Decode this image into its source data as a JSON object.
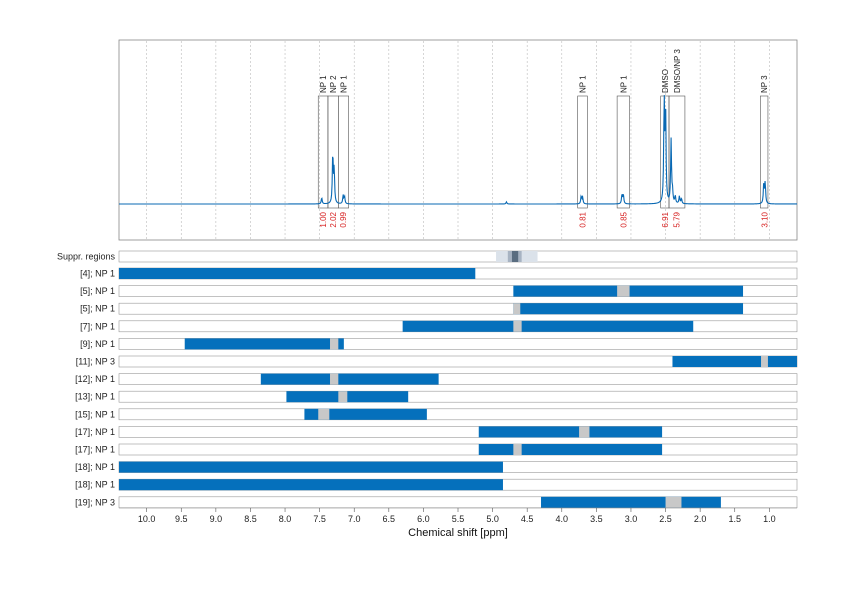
{
  "chart_data": {
    "type": "line",
    "xlabel": "Chemical shift [ppm]",
    "xlim": [
      10.4,
      0.6
    ],
    "x_ticks": [
      "10.0",
      "9.5",
      "9.0",
      "8.5",
      "8.0",
      "7.5",
      "7.0",
      "6.5",
      "6.0",
      "5.5",
      "5.0",
      "4.5",
      "4.0",
      "3.5",
      "3.0",
      "2.5",
      "2.0",
      "1.5",
      "1.0"
    ],
    "x_tick_values": [
      10.0,
      9.5,
      9.0,
      8.5,
      8.0,
      7.5,
      7.0,
      6.5,
      6.0,
      5.5,
      5.0,
      4.5,
      4.0,
      3.5,
      3.0,
      2.5,
      2.0,
      1.5,
      1.0
    ],
    "grid": true,
    "colors": {
      "spectrum": "#0868b3",
      "bar": "#0570bc",
      "gap": "#c8c8c8",
      "integral": "#d61f1f",
      "suppr": "#dbe2ea",
      "suppr_dark": "#a7b3c2",
      "suppr_core": "#5a6d80"
    },
    "spectrum": {
      "peaks": [
        {
          "x": 7.47,
          "h": 0.06
        },
        {
          "x": 7.31,
          "h": 0.48
        },
        {
          "x": 7.29,
          "h": 0.32
        },
        {
          "x": 7.16,
          "h": 0.08
        },
        {
          "x": 7.14,
          "h": 0.07
        },
        {
          "x": 3.72,
          "h": 0.07
        },
        {
          "x": 3.7,
          "h": 0.07
        },
        {
          "x": 3.13,
          "h": 0.09
        },
        {
          "x": 3.11,
          "h": 0.09
        },
        {
          "x": 2.52,
          "h": 0.95
        },
        {
          "x": 2.5,
          "h": 0.92
        },
        {
          "x": 2.42,
          "h": 0.6
        },
        {
          "x": 2.4,
          "h": 0.1
        },
        {
          "x": 2.36,
          "h": 0.07
        },
        {
          "x": 2.3,
          "h": 0.07
        },
        {
          "x": 2.27,
          "h": 0.05
        },
        {
          "x": 1.08,
          "h": 0.2
        },
        {
          "x": 1.06,
          "h": 0.2
        },
        {
          "x": 4.8,
          "h": 0.02
        }
      ]
    },
    "peak_boxes": [
      {
        "label": "NP 1",
        "x1": 7.52,
        "x2": 7.38
      },
      {
        "label": "NP 2",
        "x1": 7.38,
        "x2": 7.23
      },
      {
        "label": "NP 1",
        "x1": 7.23,
        "x2": 7.08
      },
      {
        "label": "NP 1",
        "x1": 3.77,
        "x2": 3.63
      },
      {
        "label": "NP 1",
        "x1": 3.2,
        "x2": 3.02
      },
      {
        "label": "DMSO",
        "x1": 2.57,
        "x2": 2.45
      },
      {
        "label": "DMSO/NP 3",
        "x1": 2.45,
        "x2": 2.22
      },
      {
        "label": "NP 3",
        "x1": 1.13,
        "x2": 1.02
      }
    ],
    "integrals": [
      {
        "label": "1.00",
        "x": 7.45
      },
      {
        "label": "2.02",
        "x": 7.31
      },
      {
        "label": "0.99",
        "x": 7.16
      },
      {
        "label": "0.81",
        "x": 3.7
      },
      {
        "label": "0.85",
        "x": 3.11
      },
      {
        "label": "6.91",
        "x": 2.51
      },
      {
        "label": "5.79",
        "x": 2.34
      },
      {
        "label": "3.10",
        "x": 1.07
      }
    ],
    "suppr_regions": {
      "label": "Suppr. regions",
      "outer": [
        4.95,
        4.35
      ],
      "inner": [
        4.78,
        4.58
      ],
      "core": [
        4.72,
        4.63
      ]
    },
    "rows": [
      {
        "label": "[4]; NP 1",
        "bars": [
          [
            10.4,
            5.25
          ]
        ],
        "gaps": []
      },
      {
        "label": "[5]; NP 1",
        "bars": [
          [
            4.7,
            1.38
          ]
        ],
        "gaps": [
          [
            3.2,
            3.02
          ]
        ]
      },
      {
        "label": "[5]; NP 1",
        "bars": [
          [
            4.7,
            1.38
          ]
        ],
        "gaps": [
          [
            4.7,
            4.6
          ]
        ]
      },
      {
        "label": "[7]; NP 1",
        "bars": [
          [
            6.3,
            2.1
          ]
        ],
        "gaps": [
          [
            4.7,
            4.58
          ]
        ]
      },
      {
        "label": "[9]; NP 1",
        "bars": [
          [
            9.45,
            7.15
          ]
        ],
        "gaps": [
          [
            7.35,
            7.23
          ]
        ]
      },
      {
        "label": "[11]; NP 3",
        "bars": [
          [
            2.4,
            0.6
          ]
        ],
        "gaps": [
          [
            1.12,
            1.02
          ]
        ]
      },
      {
        "label": "[12]; NP 1",
        "bars": [
          [
            8.35,
            5.78
          ]
        ],
        "gaps": [
          [
            7.35,
            7.23
          ]
        ]
      },
      {
        "label": "[13]; NP 1",
        "bars": [
          [
            7.98,
            6.22
          ]
        ],
        "gaps": [
          [
            7.23,
            7.1
          ]
        ]
      },
      {
        "label": "[15]; NP 1",
        "bars": [
          [
            7.72,
            5.95
          ]
        ],
        "gaps": [
          [
            7.52,
            7.36
          ]
        ]
      },
      {
        "label": "[17]; NP 1",
        "bars": [
          [
            5.2,
            2.55
          ]
        ],
        "gaps": [
          [
            3.75,
            3.6
          ]
        ]
      },
      {
        "label": "[17]; NP 1",
        "bars": [
          [
            5.2,
            2.55
          ]
        ],
        "gaps": [
          [
            4.7,
            4.58
          ]
        ]
      },
      {
        "label": "[18]; NP 1",
        "bars": [
          [
            10.4,
            4.85
          ]
        ],
        "gaps": []
      },
      {
        "label": "[18]; NP 1",
        "bars": [
          [
            10.4,
            4.85
          ]
        ],
        "gaps": []
      },
      {
        "label": "[19]; NP 3",
        "bars": [
          [
            4.3,
            1.7
          ]
        ],
        "gaps": [
          [
            2.5,
            2.27
          ]
        ]
      }
    ]
  }
}
